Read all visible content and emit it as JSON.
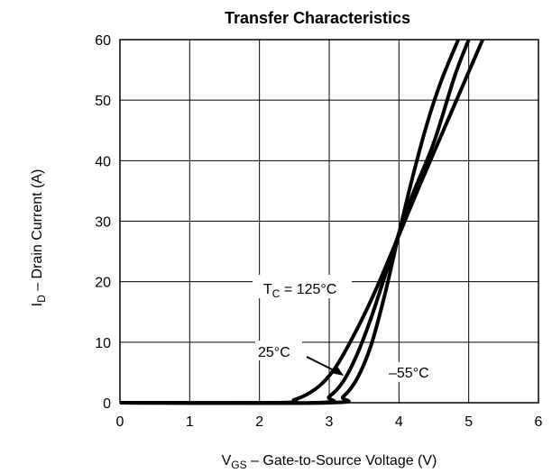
{
  "chart_data": {
    "type": "line",
    "title": "Transfer Characteristics",
    "xlabel": {
      "main": "V",
      "sub": "GS",
      "rest": " –  Gate-to-Source Voltage (V)"
    },
    "ylabel": {
      "main": "I",
      "sub": "D",
      "rest": " –  Drain Current (A)"
    },
    "xlim": [
      0,
      6
    ],
    "ylim": [
      0,
      60
    ],
    "xticks": [
      "0",
      "1",
      "2",
      "3",
      "4",
      "5",
      "6"
    ],
    "yticks": [
      "0",
      "10",
      "20",
      "30",
      "40",
      "50",
      "60"
    ],
    "grid": true,
    "series": [
      {
        "name": "125°C",
        "x": [
          0,
          2.3,
          2.5,
          2.7,
          2.9,
          3.1,
          3.3,
          3.5,
          3.7,
          4.0,
          4.3,
          4.6,
          4.9,
          5.2
        ],
        "y": [
          0,
          0,
          0.5,
          1.5,
          3.2,
          6,
          10,
          14.5,
          19.5,
          27.7,
          36,
          44,
          52,
          60
        ]
      },
      {
        "name": "25°C",
        "x": [
          0,
          2.8,
          3.0,
          3.2,
          3.4,
          3.6,
          3.8,
          4.0,
          4.2,
          4.5,
          4.8,
          5.0
        ],
        "y": [
          0,
          0,
          1,
          3.5,
          8,
          14,
          21,
          28,
          34.5,
          43,
          54,
          60
        ]
      },
      {
        "name": "–55°C",
        "x": [
          0,
          3.0,
          3.2,
          3.4,
          3.6,
          3.8,
          4.0,
          4.2,
          4.4,
          4.6,
          4.85
        ],
        "y": [
          0,
          0,
          1,
          4,
          9.5,
          18,
          28,
          37.5,
          46,
          53,
          60
        ]
      }
    ],
    "annotations": {
      "tc": {
        "main": "T",
        "sub": "C",
        "rest": " = 125°C"
      },
      "t25": "25°C",
      "tm55": "–55°C"
    }
  }
}
